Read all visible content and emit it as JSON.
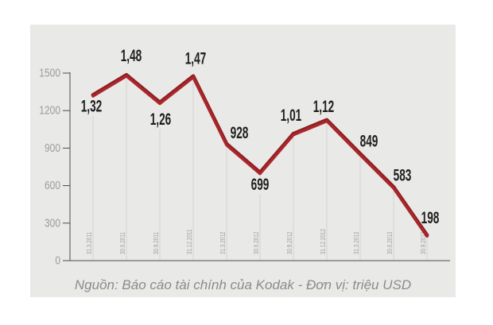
{
  "chart_data": {
    "type": "line",
    "title": "",
    "categories": [
      "31.3.2011",
      "30.6.2011",
      "30.9.2011",
      "31.12.2011",
      "31.3.2012",
      "30.6.2012",
      "30.9.2012",
      "31.12.2012",
      "31.3.2013",
      "30.6.2013",
      "30.9.2013"
    ],
    "values": [
      1320,
      1480,
      1260,
      1470,
      928,
      699,
      1010,
      1120,
      849,
      583,
      198
    ],
    "point_labels": [
      "1,32",
      "1,48",
      "1,26",
      "1,47",
      "928",
      "699",
      "1,01",
      "1,12",
      "849",
      "583",
      "198"
    ],
    "yticks": [
      0,
      300,
      600,
      900,
      1200,
      1500
    ],
    "ytick_labels": [
      "0",
      "300",
      "600",
      "900",
      "1200",
      "1500"
    ],
    "ylim": [
      0,
      1500
    ],
    "xlabel": "",
    "ylabel": "",
    "legend": "none",
    "grid": "vertical drop line under each data point",
    "unit": "triệu USD",
    "caption": "Nguồn: Báo cáo tài chính của Kodak - Đơn vị: triệu USD",
    "colors": {
      "line": "#a9262a",
      "line_dark": "#871d20",
      "background_card": "#e9e9e7",
      "page_background": "#ffffff",
      "axis": "#4a4a4a",
      "tick_label": "#9c9c9c",
      "data_label": "#1e1e1e",
      "grid_line": "#d3d3d1",
      "caption_text": "#8b8b8b"
    }
  }
}
